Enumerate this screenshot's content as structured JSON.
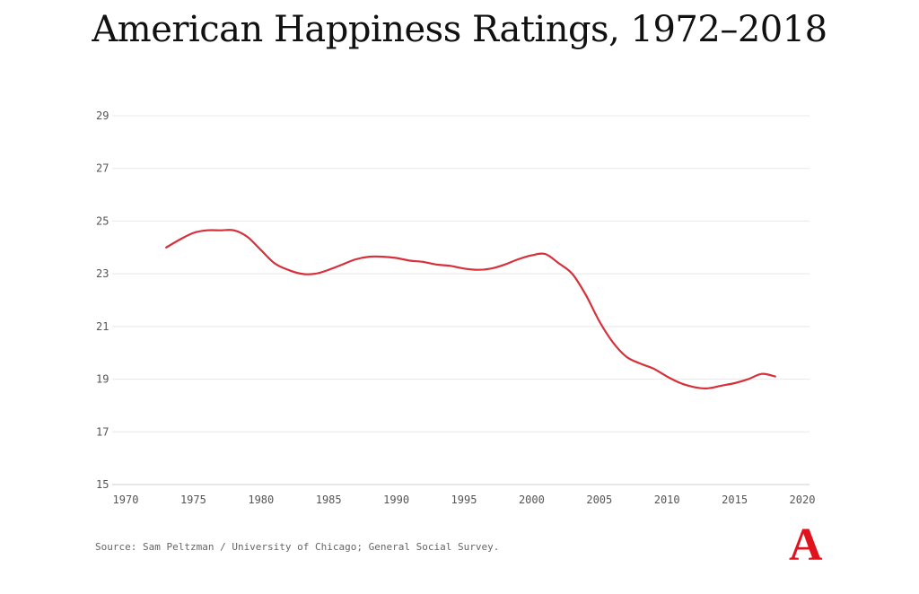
{
  "chart_data": {
    "type": "line",
    "title": "American Happiness Ratings, 1972–2018",
    "xlabel": "",
    "ylabel": "",
    "xlim": [
      1970,
      2020
    ],
    "ylim": [
      15,
      29
    ],
    "x_ticks": [
      1970,
      1975,
      1980,
      1985,
      1990,
      1995,
      2000,
      2005,
      2010,
      2015,
      2020
    ],
    "y_ticks": [
      15,
      17,
      19,
      21,
      23,
      25,
      27,
      29
    ],
    "grid": true,
    "legend": "none",
    "series": [
      {
        "color": "#d6303a",
        "x": [
          1973,
          1974,
          1975,
          1976,
          1977,
          1978,
          1979,
          1980,
          1981,
          1982,
          1983,
          1984,
          1985,
          1986,
          1987,
          1988,
          1989,
          1990,
          1991,
          1992,
          1993,
          1994,
          1995,
          1996,
          1997,
          1998,
          1999,
          2000,
          2001,
          2002,
          2003,
          2004,
          2005,
          2006,
          2007,
          2008,
          2009,
          2010,
          2011,
          2012,
          2013,
          2014,
          2015,
          2016,
          2017,
          2018
        ],
        "values": [
          24.0,
          24.3,
          24.55,
          24.65,
          24.65,
          24.65,
          24.4,
          23.9,
          23.4,
          23.15,
          23.0,
          23.0,
          23.15,
          23.35,
          23.55,
          23.65,
          23.65,
          23.6,
          23.5,
          23.45,
          23.35,
          23.3,
          23.2,
          23.15,
          23.2,
          23.35,
          23.55,
          23.7,
          23.75,
          23.4,
          23.0,
          22.2,
          21.2,
          20.4,
          19.85,
          19.6,
          19.4,
          19.1,
          18.85,
          18.7,
          18.65,
          18.75,
          18.85,
          19.0,
          19.2,
          19.1
        ]
      }
    ]
  },
  "source": "Source: Sam Peltzman / University of Chicago; General Social Survey.",
  "logo": {
    "letter": "A",
    "color": "#e0121d"
  }
}
